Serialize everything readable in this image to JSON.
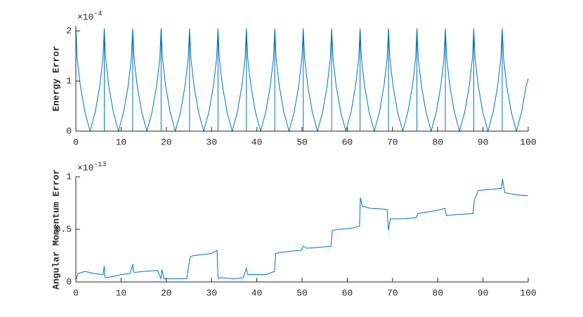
{
  "chart_data": [
    {
      "type": "line",
      "ylabel": "Energy Error",
      "y_scale_base": "×10",
      "y_scale_exponent": "-4",
      "color": "#0072bd",
      "xlim": [
        0,
        100
      ],
      "xticks": [
        0,
        10,
        20,
        30,
        40,
        50,
        60,
        70,
        80,
        90,
        100
      ],
      "ylim": [
        0,
        2.1
      ],
      "yticks": [
        0,
        1,
        2
      ],
      "x": [
        0,
        0.3,
        1,
        2,
        3.14,
        4.28,
        5.28,
        5.98,
        6.28,
        6.28,
        6.28,
        6.58,
        7.28,
        8.28,
        9.42,
        10.56,
        11.56,
        12.26,
        12.57,
        12.57,
        12.57,
        12.87,
        13.57,
        14.57,
        15.71,
        16.85,
        17.85,
        18.55,
        18.85,
        18.85,
        18.85,
        19.15,
        19.85,
        20.85,
        21.99,
        23.13,
        24.13,
        24.83,
        25.13,
        25.13,
        25.13,
        25.43,
        26.13,
        27.13,
        28.27,
        29.41,
        30.41,
        31.11,
        31.42,
        31.42,
        31.42,
        31.72,
        32.42,
        33.42,
        34.56,
        35.7,
        36.7,
        37.4,
        37.7,
        37.7,
        37.7,
        38,
        38.7,
        39.7,
        40.84,
        41.98,
        42.98,
        43.68,
        43.98,
        43.98,
        43.98,
        44.28,
        44.98,
        45.98,
        47.12,
        48.26,
        49.26,
        49.96,
        50.27,
        50.27,
        50.27,
        50.57,
        51.27,
        52.27,
        53.41,
        54.55,
        55.55,
        56.25,
        56.55,
        56.55,
        56.55,
        56.85,
        57.55,
        58.55,
        59.69,
        60.83,
        61.83,
        62.53,
        62.83,
        62.83,
        62.83,
        63.13,
        63.83,
        64.83,
        65.97,
        67.11,
        68.11,
        68.81,
        69.12,
        69.12,
        69.12,
        69.42,
        70.12,
        71.12,
        72.26,
        73.4,
        74.4,
        75.1,
        75.4,
        75.4,
        75.4,
        75.7,
        76.4,
        77.4,
        78.54,
        79.68,
        80.68,
        81.38,
        81.68,
        81.68,
        81.68,
        81.98,
        82.68,
        83.68,
        84.82,
        85.96,
        86.96,
        87.66,
        87.96,
        87.96,
        87.96,
        88.26,
        88.96,
        89.96,
        91.1,
        92.24,
        93.24,
        93.94,
        94.25,
        94.25,
        94.25,
        94.55,
        95.25,
        96.25,
        97.39,
        98.53,
        99.53,
        100
      ],
      "values": [
        2.05,
        1.45,
        0.9,
        0.38,
        0,
        0.38,
        0.9,
        1.45,
        2.05,
        0,
        2.05,
        1.45,
        0.9,
        0.38,
        0,
        0.38,
        0.9,
        1.45,
        2.05,
        0,
        2.05,
        1.45,
        0.9,
        0.38,
        0,
        0.38,
        0.9,
        1.45,
        2.05,
        0,
        2.05,
        1.45,
        0.9,
        0.38,
        0,
        0.38,
        0.9,
        1.45,
        2.05,
        0,
        2.05,
        1.45,
        0.9,
        0.38,
        0,
        0.38,
        0.9,
        1.45,
        2.05,
        0,
        2.05,
        1.45,
        0.9,
        0.38,
        0,
        0.38,
        0.9,
        1.45,
        2.05,
        0,
        2.05,
        1.45,
        0.9,
        0.38,
        0,
        0.38,
        0.9,
        1.45,
        2.05,
        0,
        2.05,
        1.45,
        0.9,
        0.38,
        0,
        0.38,
        0.9,
        1.45,
        2.05,
        0,
        2.05,
        1.45,
        0.9,
        0.38,
        0,
        0.38,
        0.9,
        1.45,
        2.05,
        0,
        2.05,
        1.45,
        0.9,
        0.38,
        0,
        0.38,
        0.9,
        1.45,
        2.05,
        0,
        2.05,
        1.45,
        0.9,
        0.38,
        0,
        0.38,
        0.9,
        1.45,
        2.05,
        0,
        2.05,
        1.45,
        0.9,
        0.38,
        0,
        0.38,
        0.9,
        1.45,
        2.05,
        0,
        2.05,
        1.45,
        0.9,
        0.38,
        0,
        0.38,
        0.9,
        1.45,
        2.05,
        0,
        2.05,
        1.45,
        0.9,
        0.38,
        0,
        0.38,
        0.9,
        1.45,
        2.05,
        0,
        2.05,
        1.45,
        0.9,
        0.38,
        0,
        0.38,
        0.9,
        1.45,
        2.05,
        0,
        2.05,
        1.45,
        0.9,
        0.38,
        0,
        0.38,
        0.9,
        1.05
      ]
    },
    {
      "type": "line",
      "ylabel": "Angular Momentum Error",
      "y_scale_base": "×10",
      "y_scale_exponent": "-13",
      "color": "#0072bd",
      "xlim": [
        0,
        100
      ],
      "xticks": [
        0,
        10,
        20,
        30,
        40,
        50,
        60,
        70,
        80,
        90,
        100
      ],
      "ylim": [
        0,
        1
      ],
      "yticks": [
        0,
        0.5,
        1
      ],
      "x": [
        0,
        0.5,
        2,
        4,
        6,
        6.28,
        6.4,
        6.6,
        8,
        10,
        12,
        12.57,
        12.7,
        13,
        15,
        18,
        18.85,
        19,
        19.5,
        22,
        24.5,
        25.13,
        25.3,
        26,
        28,
        30,
        31.2,
        31.42,
        31.6,
        32,
        35,
        37,
        37.7,
        38,
        39,
        42,
        43.9,
        44.2,
        45,
        47,
        49.8,
        50.3,
        51,
        54,
        56.4,
        56.7,
        58,
        61,
        62.7,
        62.9,
        63.3,
        65,
        68.8,
        69.1,
        69.5,
        72,
        75.2,
        75.6,
        77,
        80,
        81.6,
        81.9,
        84,
        87.8,
        88.1,
        89,
        92,
        94.1,
        94.3,
        94.8,
        97,
        100
      ],
      "values": [
        0.02,
        0.08,
        0.1,
        0.08,
        0.07,
        0.15,
        0.05,
        0.04,
        0.05,
        0.07,
        0.08,
        0.17,
        0.1,
        0.09,
        0.1,
        0.11,
        0.03,
        0.12,
        0.03,
        0.03,
        0.03,
        0.2,
        0.24,
        0.25,
        0.26,
        0.27,
        0.3,
        0.05,
        0.03,
        0.04,
        0.03,
        0.04,
        0.13,
        0.07,
        0.07,
        0.07,
        0.1,
        0.27,
        0.28,
        0.29,
        0.3,
        0.34,
        0.32,
        0.33,
        0.34,
        0.49,
        0.5,
        0.51,
        0.53,
        0.8,
        0.72,
        0.7,
        0.69,
        0.49,
        0.6,
        0.6,
        0.61,
        0.65,
        0.66,
        0.68,
        0.7,
        0.63,
        0.64,
        0.65,
        0.78,
        0.87,
        0.88,
        0.89,
        0.98,
        0.85,
        0.83,
        0.82
      ]
    }
  ]
}
